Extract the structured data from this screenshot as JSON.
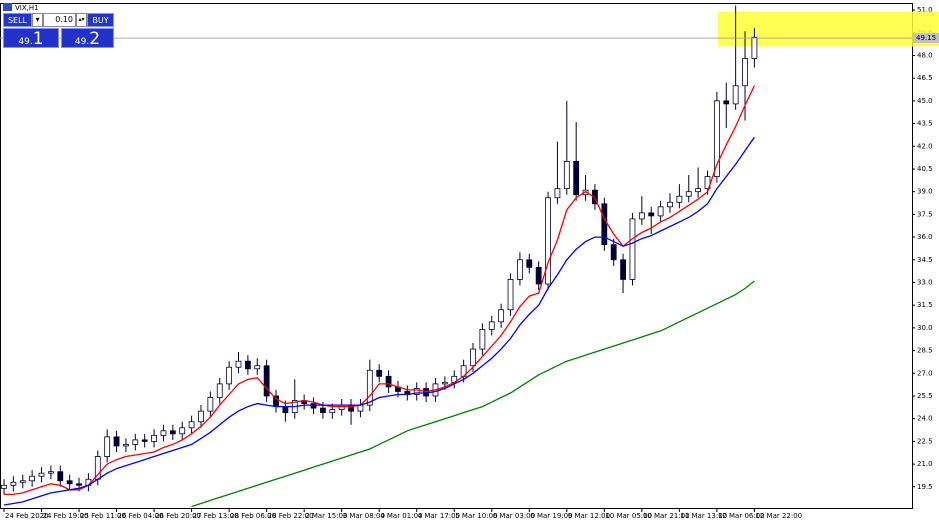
{
  "header": {
    "title": "VIX,H1"
  },
  "trade_panel": {
    "sell": "SELL",
    "buy": "BUY",
    "lot": "0.10",
    "bid": {
      "main": "49.",
      "big": "1"
    },
    "ask": {
      "main": "49.",
      "big": "2"
    }
  },
  "chart_data": {
    "type": "candlestick",
    "categories": [
      "24 Feb 2020",
      null,
      null,
      null,
      "24 Feb 19:00",
      null,
      null,
      null,
      "25 Feb 11:00",
      null,
      null,
      null,
      "26 Feb 04:00",
      null,
      null,
      null,
      "26 Feb 20:00",
      null,
      null,
      null,
      "27 Feb 13:00",
      null,
      null,
      null,
      "28 Feb 06:00",
      null,
      null,
      null,
      "28 Feb 22:00",
      null,
      null,
      null,
      "2 Mar 15:00",
      null,
      null,
      null,
      "3 Mar 08:00",
      null,
      null,
      null,
      "4 Mar 01:00",
      null,
      null,
      null,
      "4 Mar 17:00",
      null,
      null,
      null,
      "5 Mar 10:00",
      null,
      null,
      null,
      "6 Mar 03:00",
      null,
      null,
      null,
      "6 Mar 19:00",
      null,
      null,
      null,
      "9 Mar 12:00",
      null,
      null,
      null,
      "10 Mar 05:00",
      null,
      null,
      null,
      "10 Mar 21:00",
      null,
      null,
      null,
      "11 Mar 13:00",
      null,
      null,
      null,
      "12 Mar 06:00",
      null,
      null,
      null,
      "12 Mar 22:00"
    ],
    "open": [
      19.4,
      19.6,
      19.8,
      19.9,
      20.2,
      20.4,
      20.5,
      19.9,
      19.7,
      19.6,
      20.0,
      21.5,
      22.8,
      22.2,
      22.3,
      22.6,
      22.5,
      22.9,
      23.2,
      23.0,
      23.4,
      23.8,
      24.5,
      25.4,
      26.3,
      27.4,
      27.8,
      27.3,
      27.5,
      25.5,
      24.8,
      24.4,
      25.2,
      25.0,
      24.7,
      24.4,
      24.6,
      24.9,
      24.5,
      24.9,
      27.2,
      26.8,
      26.1,
      25.8,
      25.6,
      26.0,
      25.5,
      26.3,
      26.4,
      26.8,
      27.5,
      28.6,
      29.9,
      30.4,
      31.2,
      33.2,
      34.5,
      34.0,
      32.9,
      38.6,
      39.2,
      41.0,
      38.8,
      39.1,
      38.2,
      35.5,
      34.5,
      33.2,
      37.2,
      37.6,
      37.4,
      38.0,
      38.3,
      38.7,
      39.0,
      39.2,
      40.0,
      45.0,
      44.8,
      46.0,
      47.8
    ],
    "high": [
      20.0,
      20.2,
      20.3,
      20.6,
      20.8,
      20.9,
      20.9,
      20.3,
      20.1,
      20.4,
      21.9,
      23.3,
      23.2,
      22.7,
      23.0,
      23.0,
      23.3,
      23.6,
      23.6,
      23.8,
      24.2,
      24.9,
      25.8,
      26.7,
      27.8,
      28.4,
      28.2,
      28.0,
      27.9,
      25.9,
      25.2,
      26.6,
      25.6,
      25.4,
      25.1,
      25.0,
      25.3,
      25.3,
      25.3,
      27.9,
      27.6,
      27.2,
      26.5,
      26.2,
      26.4,
      26.4,
      26.7,
      26.8,
      27.2,
      27.9,
      29.0,
      30.3,
      30.8,
      31.6,
      33.6,
      35.0,
      34.9,
      34.4,
      39.0,
      42.3,
      45.0,
      43.6,
      40.1,
      39.5,
      38.6,
      35.9,
      34.9,
      37.6,
      38.7,
      38.0,
      38.4,
      38.9,
      39.5,
      40.1,
      40.6,
      40.4,
      45.6,
      46.2,
      51.3,
      49.6,
      49.8
    ],
    "low": [
      19.0,
      19.2,
      19.4,
      19.5,
      19.8,
      20.0,
      19.5,
      19.3,
      19.2,
      19.2,
      19.6,
      21.1,
      21.8,
      21.8,
      21.9,
      22.1,
      22.1,
      22.5,
      22.6,
      22.6,
      23.0,
      23.4,
      24.1,
      25.0,
      25.9,
      27.0,
      26.9,
      26.9,
      25.1,
      24.4,
      23.8,
      24.0,
      24.6,
      24.3,
      24.0,
      24.0,
      24.2,
      23.6,
      24.1,
      24.5,
      26.4,
      25.7,
      25.4,
      25.2,
      25.2,
      25.1,
      25.1,
      25.9,
      26.0,
      26.4,
      27.1,
      28.2,
      29.5,
      30.0,
      30.8,
      32.8,
      33.6,
      32.5,
      32.5,
      38.2,
      38.8,
      38.4,
      38.4,
      37.8,
      35.1,
      34.1,
      32.3,
      32.8,
      36.8,
      36.2,
      37.0,
      37.6,
      37.9,
      38.3,
      38.6,
      38.8,
      39.6,
      43.2,
      44.4,
      43.7,
      47.2
    ],
    "close": [
      19.6,
      19.8,
      19.9,
      20.2,
      20.4,
      20.5,
      19.9,
      19.7,
      19.6,
      20.0,
      21.5,
      22.8,
      22.2,
      22.3,
      22.6,
      22.5,
      22.9,
      23.2,
      23.0,
      23.4,
      23.8,
      24.5,
      25.4,
      26.3,
      27.4,
      27.8,
      27.3,
      27.5,
      25.5,
      24.8,
      24.4,
      25.2,
      25.0,
      24.7,
      24.4,
      24.6,
      24.9,
      24.5,
      24.9,
      27.2,
      26.8,
      26.1,
      25.8,
      25.6,
      26.0,
      25.5,
      26.3,
      26.4,
      26.8,
      27.5,
      28.6,
      29.9,
      30.4,
      31.2,
      33.2,
      34.5,
      34.0,
      32.9,
      38.6,
      39.2,
      41.0,
      38.8,
      39.1,
      38.2,
      35.5,
      34.5,
      33.2,
      37.2,
      37.6,
      37.4,
      38.0,
      38.3,
      38.7,
      39.0,
      39.2,
      40.0,
      45.0,
      44.8,
      46.0,
      47.8,
      49.2
    ],
    "bull_color": "#ffffff",
    "bear_color": "#000033",
    "wick_color": "#000033",
    "lines": [
      {
        "color": "#ff0000",
        "values": [
          19.0,
          19.0,
          19.1,
          19.3,
          19.5,
          19.7,
          19.6,
          19.3,
          19.3,
          19.6,
          20.3,
          21.0,
          21.3,
          21.5,
          21.6,
          21.7,
          21.8,
          22.1,
          22.3,
          22.6,
          23.0,
          23.5,
          24.1,
          24.9,
          25.6,
          26.3,
          26.6,
          26.7,
          26.0,
          25.3,
          25.0,
          25.1,
          25.2,
          25.1,
          24.9,
          24.8,
          24.8,
          24.8,
          24.9,
          25.5,
          26.3,
          26.3,
          26.1,
          25.9,
          25.9,
          25.8,
          25.9,
          26.1,
          26.4,
          26.8,
          27.4,
          28.1,
          28.8,
          29.5,
          30.4,
          31.4,
          32.1,
          32.3,
          34.3,
          35.8,
          37.8,
          38.6,
          39.0,
          38.6,
          37.2,
          36.2,
          35.4,
          35.9,
          36.3,
          36.6,
          37.0,
          37.3,
          37.7,
          38.1,
          38.5,
          39.0,
          40.8,
          42.1,
          43.3,
          44.7,
          46.0
        ]
      },
      {
        "color": "#0000ff",
        "values": [
          18.3,
          18.4,
          18.5,
          18.7,
          18.9,
          19.1,
          19.2,
          19.3,
          19.4,
          19.6,
          20.0,
          20.4,
          20.7,
          20.9,
          21.1,
          21.3,
          21.5,
          21.7,
          21.9,
          22.1,
          22.3,
          22.7,
          23.1,
          23.6,
          24.1,
          24.5,
          24.8,
          25.0,
          24.9,
          24.8,
          24.8,
          24.8,
          24.9,
          24.9,
          24.9,
          24.9,
          24.9,
          24.9,
          24.9,
          25.1,
          25.4,
          25.5,
          25.6,
          25.6,
          25.7,
          25.7,
          25.8,
          26.0,
          26.3,
          26.6,
          27.0,
          27.5,
          28.0,
          28.6,
          29.3,
          30.2,
          30.9,
          31.5,
          32.6,
          33.5,
          34.5,
          35.2,
          35.7,
          36.0,
          36.0,
          35.7,
          35.4,
          35.6,
          35.9,
          36.1,
          36.4,
          36.7,
          37.0,
          37.3,
          37.7,
          38.2,
          39.2,
          40.0,
          40.8,
          41.7,
          42.6
        ]
      },
      {
        "color": "#008000",
        "values": [
          null,
          null,
          null,
          null,
          null,
          null,
          null,
          null,
          null,
          null,
          null,
          null,
          null,
          null,
          null,
          null,
          null,
          null,
          null,
          null,
          18.2,
          18.4,
          18.6,
          18.8,
          19.0,
          19.2,
          19.4,
          19.6,
          19.8,
          20.0,
          20.2,
          20.4,
          20.6,
          20.8,
          21.0,
          21.2,
          21.4,
          21.6,
          21.8,
          22.0,
          22.3,
          22.6,
          22.9,
          23.2,
          23.4,
          23.6,
          23.8,
          24.0,
          24.2,
          24.4,
          24.6,
          24.8,
          25.1,
          25.4,
          25.7,
          26.1,
          26.5,
          26.9,
          27.2,
          27.5,
          27.8,
          28.0,
          28.2,
          28.4,
          28.6,
          28.8,
          29.0,
          29.2,
          29.4,
          29.6,
          29.8,
          30.1,
          30.4,
          30.7,
          31.0,
          31.3,
          31.6,
          31.9,
          32.2,
          32.6,
          33.1
        ]
      }
    ],
    "ylim": [
      18.1,
      51.4
    ],
    "yticks": [
      {
        "value": 51,
        "label": "51.0"
      },
      49.5,
      {
        "value": 48,
        "label": "48.0"
      },
      46.5,
      {
        "value": 45,
        "label": "45.0"
      },
      43.5,
      {
        "value": 42,
        "label": "42.0"
      },
      40.5,
      {
        "value": 39,
        "label": "39.0"
      },
      37.5,
      {
        "value": 36,
        "label": "36.0"
      },
      34.5,
      {
        "value": 33,
        "label": "33.0"
      },
      31.5,
      {
        "value": 30,
        "label": "30.0"
      },
      28.5,
      {
        "value": 27,
        "label": "27.0"
      },
      25.5,
      {
        "value": 24,
        "label": "24.0"
      },
      22.5,
      {
        "value": 21,
        "label": "21.0"
      },
      19.5
    ],
    "price_line": 49.15,
    "highlight_band": [
      48.6,
      50.9
    ],
    "highlight_color": "#ffff33",
    "grid": false
  }
}
